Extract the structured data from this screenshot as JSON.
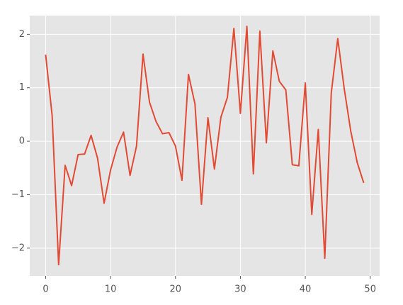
{
  "chart_data": {
    "type": "line",
    "x": [
      0,
      1,
      2,
      3,
      4,
      5,
      6,
      7,
      8,
      9,
      10,
      11,
      12,
      13,
      14,
      15,
      16,
      17,
      18,
      19,
      20,
      21,
      22,
      23,
      24,
      25,
      26,
      27,
      28,
      29,
      30,
      31,
      32,
      33,
      34,
      35,
      36,
      37,
      38,
      39,
      40,
      41,
      42,
      43,
      44,
      45,
      46,
      47,
      48,
      49
    ],
    "series": [
      {
        "color": "#E24A33",
        "values": [
          1.62,
          0.48,
          -2.31,
          -0.45,
          -0.83,
          -0.25,
          -0.24,
          0.11,
          -0.32,
          -1.16,
          -0.54,
          -0.11,
          0.17,
          -0.64,
          -0.09,
          1.63,
          0.73,
          0.37,
          0.14,
          0.16,
          -0.09,
          -0.73,
          1.25,
          0.7,
          -1.18,
          0.44,
          -0.52,
          0.45,
          0.82,
          2.11,
          0.52,
          2.15,
          -0.61,
          2.06,
          -0.03,
          1.69,
          1.12,
          0.96,
          -0.44,
          -0.46,
          1.09,
          -1.37,
          0.22,
          -2.19,
          0.9,
          1.92,
          0.98,
          0.19,
          -0.4,
          -0.78
        ]
      }
    ],
    "xlim": [
      -2.45,
      51.45
    ],
    "xticks": [
      0,
      10,
      20,
      30,
      40,
      50
    ],
    "ylim": [
      -2.52,
      2.35
    ],
    "yticks": [
      {
        "value": -2,
        "label": "−2"
      },
      {
        "value": -1,
        "label": "−1"
      },
      0,
      1,
      2
    ],
    "grid": true
  }
}
